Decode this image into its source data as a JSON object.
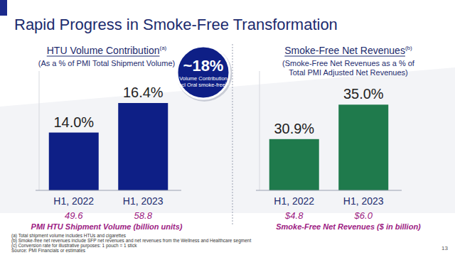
{
  "slide": {
    "title": "Rapid Progress in Smoke-Free Transformation",
    "footnotes": [
      "(a) Total shipment volume includes HTUs and cigarettes",
      "(b) Smoke-free net revenues include SFP net revenues and net revenues from the Wellness and Healthcare segment",
      "(c) Conversion rate for illustrative purposes: 1 pouch = 1 stick"
    ],
    "source": "Source: PMI Financials or estimates",
    "page_number": "13"
  },
  "chart_data": [
    {
      "type": "bar",
      "title": "HTU Volume Contribution",
      "title_note": "(a)",
      "subtitle": [
        "(As a % of PMI Total Shipment Volume)"
      ],
      "categories": [
        "H1, 2022",
        "H1, 2023"
      ],
      "values": [
        14.0,
        16.4
      ],
      "value_labels": [
        "14.0%",
        "16.4%"
      ],
      "color": "#0e1f86",
      "ylim": [
        9.3,
        19
      ],
      "yticks": [],
      "grid": false,
      "data_labels": true,
      "tick_labels": "x",
      "sub_values": [
        49.6,
        58.8
      ],
      "sub_caption": "PMI HTU Shipment Volume (billion units)",
      "annotation": {
        "text": "~18%",
        "lines": [
          "Volume Contribution",
          "Incl Oral smoke-free"
        ],
        "note": "(c)"
      }
    },
    {
      "type": "bar",
      "title": "Smoke-Free Net Revenues",
      "title_note": "(b)",
      "subtitle": [
        "(Smoke-Free Net Revenues as a % of",
        "Total PMI Adjusted Net Revenues)"
      ],
      "categories": [
        "H1, 2022",
        "H1, 2023"
      ],
      "values": [
        30.9,
        35.0
      ],
      "value_labels": [
        "30.9%",
        "35.0%"
      ],
      "color": "#1f7a4c",
      "ylim": [
        24.8,
        39
      ],
      "yticks": [],
      "grid": false,
      "data_labels": true,
      "tick_labels": "x",
      "sub_values": [
        4.8,
        6.0
      ],
      "sub_labels": [
        "$4.8",
        "$6.0"
      ],
      "sub_caption": "Smoke-Free Net Revenues ($ in billion)"
    }
  ]
}
